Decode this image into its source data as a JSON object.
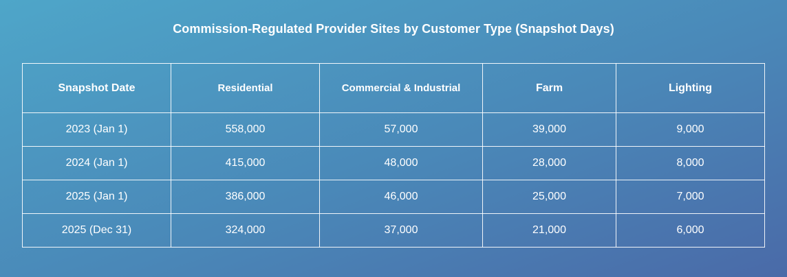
{
  "chart_data": {
    "type": "table",
    "title": "Commission-Regulated Provider Sites by Customer Type (Snapshot Days)",
    "columns": [
      "Snapshot Date",
      "Residential",
      "Commercial & Industrial",
      "Farm",
      "Lighting"
    ],
    "rows": [
      [
        "2023 (Jan 1)",
        "558,000",
        "57,000",
        "39,000",
        "9,000"
      ],
      [
        "2024 (Jan 1)",
        "415,000",
        "48,000",
        "28,000",
        "8,000"
      ],
      [
        "2025 (Jan 1)",
        "386,000",
        "46,000",
        "25,000",
        "7,000"
      ],
      [
        "2025 (Dec 31)",
        "324,000",
        "37,000",
        "21,000",
        "6,000"
      ]
    ]
  }
}
